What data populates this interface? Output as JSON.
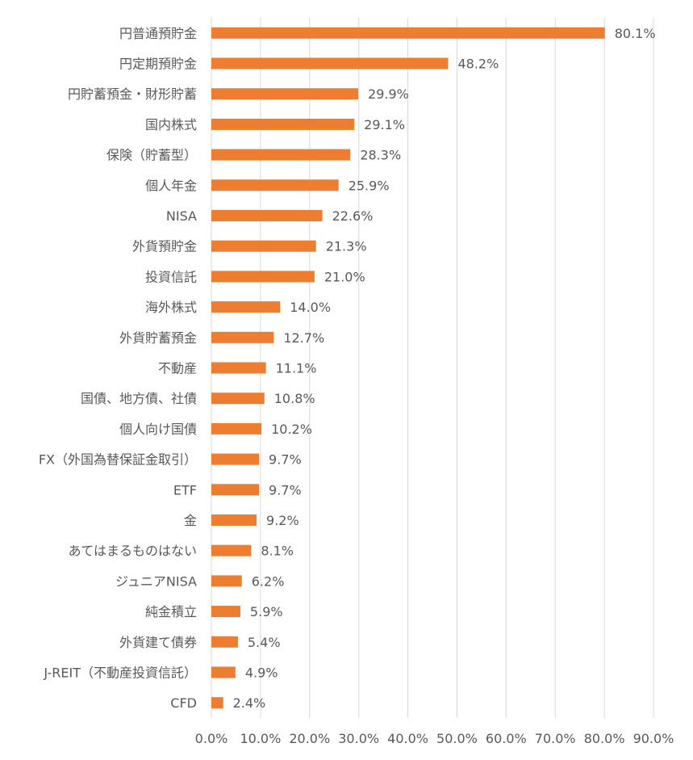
{
  "chart_data": {
    "type": "bar",
    "orientation": "horizontal",
    "bar_color": "#ED7D31",
    "grid": true,
    "xlim": [
      0,
      90
    ],
    "x_ticks": [
      "0.0%",
      "10.0%",
      "20.0%",
      "30.0%",
      "40.0%",
      "50.0%",
      "60.0%",
      "70.0%",
      "80.0%",
      "90.0%"
    ],
    "categories": [
      "円普通預貯金",
      "円定期預貯金",
      "円貯蓄預金・財形貯蓄",
      "国内株式",
      "保険（貯蓄型）",
      "個人年金",
      "NISA",
      "外貨預貯金",
      "投資信託",
      "海外株式",
      "外貨貯蓄預金",
      "不動産",
      "国債、地方債、社債",
      "個人向け国債",
      "FX（外国為替保証金取引）",
      "ETF",
      "金",
      "あてはまるものはない",
      "ジュニアNISA",
      "純金積立",
      "外貨建て債券",
      "J-REIT（不動産投資信託）",
      "CFD"
    ],
    "values": [
      80.1,
      48.2,
      29.9,
      29.1,
      28.3,
      25.9,
      22.6,
      21.3,
      21.0,
      14.0,
      12.7,
      11.1,
      10.8,
      10.2,
      9.7,
      9.7,
      9.2,
      8.1,
      6.2,
      5.9,
      5.4,
      4.9,
      2.4
    ],
    "value_labels": [
      "80.1%",
      "48.2%",
      "29.9%",
      "29.1%",
      "28.3%",
      "25.9%",
      "22.6%",
      "21.3%",
      "21.0%",
      "14.0%",
      "12.7%",
      "11.1%",
      "10.8%",
      "10.2%",
      "9.7%",
      "9.7%",
      "9.2%",
      "8.1%",
      "6.2%",
      "5.9%",
      "5.4%",
      "4.9%",
      "2.4%"
    ]
  }
}
